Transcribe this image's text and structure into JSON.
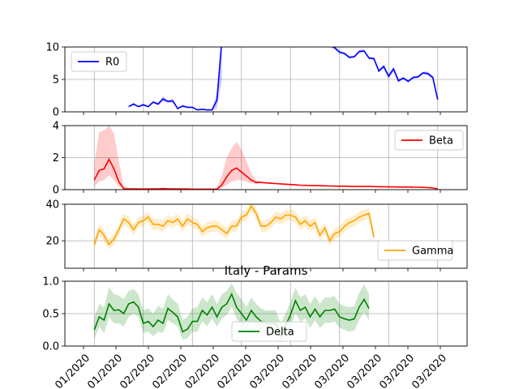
{
  "chart_data": [
    {
      "type": "line",
      "title": "",
      "xlabel": "",
      "ylabel": "",
      "ylim": [
        0,
        10
      ],
      "yticks": [
        "0",
        "5",
        "10"
      ],
      "grid": true,
      "legend": "upper left",
      "series": [
        {
          "name": "R0",
          "color": "#0000ff",
          "band": true
        }
      ],
      "x": [
        0,
        1,
        2,
        3,
        4,
        5,
        6,
        7,
        8,
        9,
        10,
        11,
        12,
        13,
        14,
        15,
        16,
        17,
        18,
        19,
        20,
        21,
        22,
        23,
        24,
        25,
        26,
        27,
        28,
        29,
        30,
        31,
        32,
        33,
        34,
        35,
        36,
        37,
        38,
        39,
        40,
        41,
        42,
        43,
        44,
        45,
        46,
        47,
        48,
        49,
        50,
        51,
        52,
        53,
        54,
        55,
        56,
        57,
        58,
        59,
        60,
        61,
        62,
        63,
        64,
        65,
        66,
        67,
        68,
        69,
        70,
        71,
        72,
        73,
        74
      ],
      "y": [
        null,
        null,
        null,
        null,
        null,
        null,
        null,
        0.8,
        1.2,
        0.8,
        1.1,
        0.8,
        1.5,
        1.2,
        2.0,
        1.6,
        1.7,
        0.5,
        0.9,
        0.7,
        0.7,
        0.3,
        0.4,
        0.3,
        0.3,
        1.8,
        11,
        null,
        null,
        null,
        null,
        null,
        null,
        null,
        null,
        null,
        null,
        null,
        null,
        null,
        null,
        null,
        null,
        null,
        null,
        null,
        null,
        null,
        10.2,
        9.9,
        9.2,
        9.0,
        8.4,
        8.5,
        9.3,
        9.4,
        8.3,
        8.2,
        6.3,
        7.0,
        5.5,
        6.6,
        4.8,
        5.2,
        4.7,
        5.3,
        5.4,
        6.0,
        5.9,
        5.3,
        1.9,
        null,
        null,
        null,
        null
      ],
      "lower": [
        null,
        null,
        null,
        null,
        null,
        null,
        null,
        0.7,
        1.0,
        0.7,
        0.9,
        0.7,
        1.3,
        1.0,
        1.6,
        1.4,
        1.4,
        0.4,
        0.7,
        0.6,
        0.6,
        0.2,
        0.3,
        0.2,
        0.2,
        0.6,
        5,
        null,
        null,
        null,
        null,
        null,
        null,
        null,
        null,
        null,
        null,
        null,
        null,
        null,
        null,
        null,
        null,
        null,
        null,
        null,
        null,
        null,
        10.0,
        9.6,
        9.0,
        8.8,
        8.2,
        8.3,
        9.0,
        9.2,
        8.1,
        8.0,
        6.0,
        6.7,
        5.0,
        6.2,
        4.5,
        5.0,
        4.5,
        5.1,
        5.2,
        5.8,
        5.6,
        5.0,
        1.7,
        null,
        null,
        null,
        null
      ],
      "upper": [
        null,
        null,
        null,
        null,
        null,
        null,
        null,
        0.9,
        1.4,
        0.9,
        1.3,
        0.9,
        1.7,
        1.4,
        2.4,
        1.8,
        2.0,
        0.6,
        1.1,
        0.8,
        0.8,
        0.4,
        0.5,
        0.4,
        0.4,
        3.0,
        12,
        null,
        null,
        null,
        null,
        null,
        null,
        null,
        null,
        null,
        null,
        null,
        null,
        null,
        null,
        null,
        null,
        null,
        null,
        null,
        null,
        null,
        10.4,
        10.2,
        9.4,
        9.2,
        8.6,
        8.7,
        9.6,
        9.6,
        8.5,
        8.4,
        6.6,
        7.3,
        5.9,
        7.0,
        5.1,
        5.4,
        4.9,
        5.5,
        5.6,
        6.2,
        6.2,
        5.6,
        2.1,
        null,
        null,
        null,
        null
      ]
    },
    {
      "type": "line",
      "title": "",
      "xlabel": "",
      "ylabel": "",
      "ylim": [
        0,
        4
      ],
      "yticks": [
        "0",
        "2",
        "4"
      ],
      "grid": true,
      "legend": "upper right",
      "series": [
        {
          "name": "Beta",
          "color": "#ff0000",
          "band": true
        }
      ],
      "x": [
        0,
        1,
        2,
        3,
        4,
        5,
        6,
        7,
        8,
        9,
        10,
        11,
        12,
        13,
        14,
        15,
        16,
        17,
        18,
        19,
        20,
        21,
        22,
        23,
        24,
        25,
        26,
        27,
        28,
        29,
        30,
        31,
        32,
        33,
        34,
        35,
        36,
        37,
        38,
        39,
        40,
        41,
        42,
        43,
        44,
        45,
        46,
        47,
        48,
        49,
        50,
        51,
        52,
        53,
        54,
        55,
        56,
        57,
        58,
        59,
        60,
        61,
        62,
        63,
        64,
        65,
        66,
        67,
        68,
        69,
        70
      ],
      "y": [
        0.6,
        1.2,
        1.3,
        1.9,
        1.3,
        0.5,
        0.05,
        0.05,
        0.05,
        0.04,
        0.04,
        0.04,
        0.05,
        0.05,
        0.06,
        0.05,
        0.05,
        0.04,
        0.04,
        0.04,
        0.03,
        0.03,
        0.03,
        0.03,
        0.03,
        0.03,
        0.3,
        0.8,
        1.2,
        1.35,
        1.1,
        0.85,
        0.6,
        0.45,
        0.45,
        0.42,
        0.4,
        0.38,
        0.36,
        0.34,
        0.32,
        0.3,
        0.28,
        0.27,
        0.26,
        0.25,
        0.25,
        0.24,
        0.23,
        0.22,
        0.22,
        0.22,
        0.21,
        0.2,
        0.2,
        0.2,
        0.2,
        0.19,
        0.18,
        0.18,
        0.17,
        0.17,
        0.16,
        0.16,
        0.16,
        0.15,
        0.15,
        0.14,
        0.13,
        0.1,
        0.05
      ],
      "lower": [
        0.2,
        0.5,
        0.6,
        0.9,
        0.6,
        0.2,
        0.02,
        0.02,
        0.02,
        0.02,
        0.02,
        0.02,
        0.02,
        0.02,
        0.03,
        0.02,
        0.02,
        0.02,
        0.02,
        0.02,
        0.01,
        0.01,
        0.01,
        0.01,
        0.01,
        0.01,
        0.1,
        0.3,
        0.5,
        0.6,
        0.6,
        0.5,
        0.4,
        0.35,
        0.4,
        0.38,
        0.36,
        0.34,
        0.32,
        0.3,
        0.28,
        0.27,
        0.25,
        0.24,
        0.23,
        0.22,
        0.22,
        0.21,
        0.2,
        0.2,
        0.2,
        0.2,
        0.19,
        0.18,
        0.18,
        0.18,
        0.18,
        0.17,
        0.16,
        0.16,
        0.15,
        0.15,
        0.14,
        0.14,
        0.14,
        0.13,
        0.13,
        0.12,
        0.11,
        0.08,
        0.03
      ],
      "upper": [
        1.6,
        3.6,
        3.7,
        4.0,
        3.5,
        1.8,
        0.2,
        0.1,
        0.1,
        0.08,
        0.08,
        0.08,
        0.1,
        0.1,
        0.12,
        0.1,
        0.1,
        0.08,
        0.08,
        0.08,
        0.06,
        0.06,
        0.06,
        0.06,
        0.06,
        0.1,
        0.9,
        2.0,
        2.6,
        3.0,
        2.5,
        1.8,
        1.0,
        0.6,
        0.5,
        0.46,
        0.44,
        0.42,
        0.4,
        0.38,
        0.36,
        0.33,
        0.31,
        0.3,
        0.29,
        0.28,
        0.28,
        0.27,
        0.26,
        0.24,
        0.24,
        0.24,
        0.23,
        0.22,
        0.22,
        0.22,
        0.22,
        0.21,
        0.2,
        0.2,
        0.19,
        0.19,
        0.18,
        0.18,
        0.18,
        0.17,
        0.17,
        0.16,
        0.15,
        0.12,
        0.07
      ]
    },
    {
      "type": "line",
      "title": "",
      "xlabel": "",
      "ylabel": "",
      "ylim": [
        5,
        40
      ],
      "yticks": [
        "20",
        "40"
      ],
      "ytick_values": [
        20,
        40
      ],
      "grid": true,
      "legend": "lower right",
      "series": [
        {
          "name": "Gamma",
          "color": "#ffa500",
          "band": true
        }
      ],
      "x": [
        0,
        1,
        2,
        3,
        4,
        5,
        6,
        7,
        8,
        9,
        10,
        11,
        12,
        13,
        14,
        15,
        16,
        17,
        18,
        19,
        20,
        21,
        22,
        23,
        24,
        25,
        26,
        27,
        28,
        29,
        30,
        31,
        32,
        33,
        34,
        35,
        36,
        37,
        38,
        39,
        40,
        41,
        42,
        43,
        44,
        45,
        46,
        47,
        48,
        49,
        50,
        51,
        52,
        53,
        54,
        55,
        56,
        57,
        58,
        59,
        60,
        61,
        62,
        63,
        64,
        65,
        66,
        67,
        68,
        69,
        70
      ],
      "y": [
        18,
        26,
        23,
        18,
        21,
        26,
        32,
        30,
        26,
        30,
        31,
        33,
        29,
        29,
        28,
        31,
        30,
        32,
        28,
        32,
        30,
        29,
        25,
        27,
        28,
        28,
        26,
        24,
        28,
        28,
        33,
        34,
        39,
        35,
        28,
        28,
        30,
        33,
        32,
        34,
        34,
        33,
        29,
        31,
        28,
        30,
        23,
        27,
        20,
        24,
        25,
        28,
        30,
        31,
        33,
        34,
        35,
        22,
        null,
        null,
        null,
        null,
        null,
        null,
        null,
        null,
        null,
        null,
        null,
        null,
        null
      ],
      "lower": [
        15,
        23,
        20,
        15,
        18,
        23,
        29,
        27,
        23,
        27,
        28,
        30,
        26,
        26,
        25,
        28,
        27,
        29,
        25,
        29,
        27,
        26,
        22,
        24,
        25,
        25,
        23,
        21,
        25,
        25,
        30,
        31,
        36,
        32,
        25,
        25,
        27,
        30,
        29,
        31,
        31,
        30,
        26,
        28,
        25,
        27,
        20,
        24,
        17,
        21,
        22,
        25,
        27,
        28,
        30,
        31,
        32,
        19,
        null,
        null,
        null,
        null,
        null,
        null,
        null,
        null,
        null,
        null,
        null,
        null,
        null
      ],
      "upper": [
        21,
        29,
        26,
        21,
        24,
        29,
        35,
        33,
        29,
        33,
        34,
        36,
        32,
        32,
        31,
        34,
        33,
        35,
        31,
        35,
        33,
        32,
        28,
        30,
        31,
        31,
        29,
        27,
        31,
        31,
        36,
        37,
        42,
        38,
        31,
        31,
        33,
        36,
        35,
        37,
        37,
        36,
        32,
        34,
        31,
        33,
        26,
        30,
        23,
        27,
        28,
        31,
        33,
        34,
        36,
        37,
        38,
        25,
        null,
        null,
        null,
        null,
        null,
        null,
        null,
        null,
        null,
        null,
        null,
        null,
        null
      ]
    },
    {
      "type": "line",
      "title": "Italy - Params",
      "xlabel": "",
      "ylabel": "",
      "ylim": [
        0,
        1
      ],
      "yticks": [
        "0.0",
        "0.5",
        "1.0"
      ],
      "grid": true,
      "legend": "lower center",
      "series": [
        {
          "name": "Delta",
          "color": "#008000",
          "band": true
        }
      ],
      "x": [
        0,
        1,
        2,
        3,
        4,
        5,
        6,
        7,
        8,
        9,
        10,
        11,
        12,
        13,
        14,
        15,
        16,
        17,
        18,
        19,
        20,
        21,
        22,
        23,
        24,
        25,
        26,
        27,
        28,
        29,
        30,
        31,
        32,
        33,
        34,
        35,
        36,
        37,
        38,
        39,
        40,
        41,
        42,
        43,
        44,
        45,
        46,
        47,
        48,
        49,
        50,
        51,
        52,
        53,
        54,
        55,
        56,
        57,
        58,
        59,
        60,
        61,
        62,
        63,
        64,
        65,
        66,
        67,
        68,
        69,
        70
      ],
      "y": [
        0.25,
        0.45,
        0.4,
        0.65,
        0.55,
        0.56,
        0.5,
        0.65,
        0.68,
        0.6,
        0.35,
        0.38,
        0.3,
        0.4,
        0.35,
        0.58,
        0.52,
        0.45,
        0.22,
        0.26,
        0.38,
        0.38,
        0.55,
        0.48,
        0.6,
        0.45,
        0.6,
        0.65,
        0.8,
        0.6,
        0.5,
        0.4,
        0.55,
        0.45,
        0.38,
        0.35,
        0.35,
        0.35,
        0.15,
        0.32,
        0.48,
        0.7,
        0.55,
        0.6,
        0.45,
        0.57,
        0.45,
        0.55,
        0.55,
        0.57,
        0.45,
        0.42,
        0.4,
        0.42,
        0.6,
        0.72,
        0.58,
        null,
        null,
        null,
        null,
        null,
        null,
        null,
        null,
        null,
        null,
        null,
        null,
        null,
        null
      ],
      "lower": [
        0.1,
        0.3,
        0.2,
        0.45,
        0.35,
        0.35,
        0.3,
        0.45,
        0.5,
        0.45,
        0.2,
        0.22,
        0.15,
        0.22,
        0.2,
        0.4,
        0.35,
        0.3,
        0.1,
        0.12,
        0.22,
        0.22,
        0.38,
        0.3,
        0.42,
        0.3,
        0.42,
        0.48,
        0.6,
        0.42,
        0.32,
        0.25,
        0.38,
        0.28,
        0.22,
        0.2,
        0.2,
        0.2,
        0.05,
        0.17,
        0.3,
        0.5,
        0.38,
        0.42,
        0.28,
        0.4,
        0.28,
        0.36,
        0.36,
        0.38,
        0.28,
        0.25,
        0.22,
        0.24,
        0.4,
        0.52,
        0.4,
        null,
        null,
        null,
        null,
        null,
        null,
        null,
        null,
        null,
        null,
        null,
        null,
        null,
        null
      ],
      "upper": [
        0.45,
        0.65,
        0.6,
        0.9,
        0.8,
        0.78,
        0.72,
        0.85,
        0.88,
        0.8,
        0.55,
        0.58,
        0.5,
        0.62,
        0.58,
        0.8,
        0.72,
        0.65,
        0.4,
        0.45,
        0.58,
        0.6,
        0.75,
        0.68,
        0.8,
        0.65,
        0.8,
        0.85,
        0.97,
        0.82,
        0.72,
        0.6,
        0.75,
        0.65,
        0.58,
        0.55,
        0.55,
        0.55,
        0.35,
        0.5,
        0.68,
        0.9,
        0.75,
        0.8,
        0.65,
        0.77,
        0.65,
        0.75,
        0.75,
        0.77,
        0.65,
        0.62,
        0.6,
        0.62,
        0.82,
        0.95,
        0.8,
        null,
        null,
        null,
        null,
        null,
        null,
        null,
        null,
        null,
        null,
        null,
        null,
        null,
        null
      ]
    }
  ],
  "shared_x_ticklabels": [
    "01/2020",
    "01/2020",
    "02/2020",
    "02/2020",
    "02/2020",
    "02/2020",
    "03/2020",
    "03/2020",
    "03/2020",
    "03/2020",
    "03/2020",
    "03/2020"
  ]
}
